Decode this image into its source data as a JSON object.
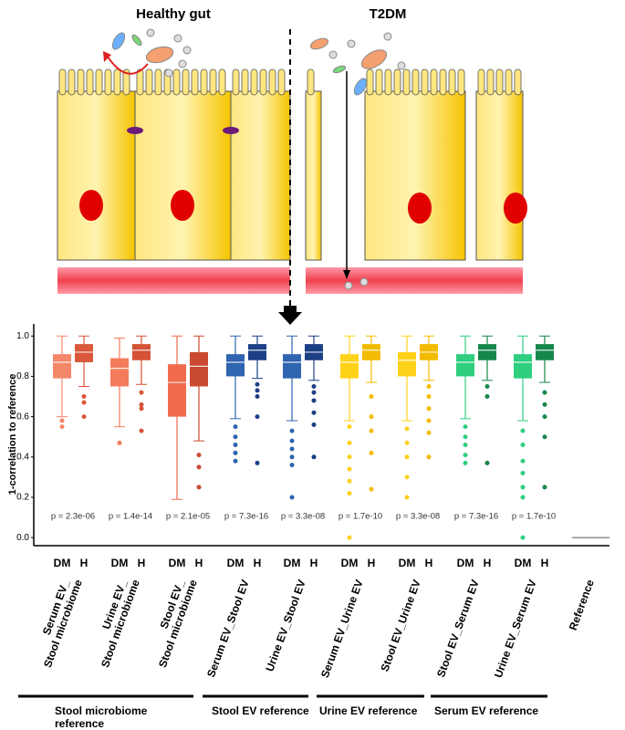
{
  "illustration": {
    "left_title": "Healthy gut",
    "right_title": "T2DM"
  },
  "chart_data": {
    "type": "box",
    "ylabel": "1-correlation to reference",
    "ylim": [
      -0.04,
      1.06
    ],
    "yticks": [
      {
        "value": 0,
        "label": "0.0"
      },
      {
        "value": 0.2,
        "label": "0.2"
      },
      {
        "value": 0.4,
        "label": "0.4"
      },
      {
        "value": 0.6,
        "label": "0.6"
      },
      {
        "value": 0.8,
        "label": "0.8"
      },
      {
        "value": 1,
        "label": "1.0"
      }
    ],
    "groups": [
      {
        "label": [
          "Serum EV_",
          "Stool microbiome"
        ],
        "p": "p = 2.3e-06",
        "boxes": [
          {
            "category": "DM",
            "color": "#f4866a",
            "stats": [
              0.6,
              0.79,
              0.87,
              0.91,
              1.0
            ],
            "outliers": [
              0.58,
              0.55
            ]
          },
          {
            "category": "H",
            "color": "#d9573b",
            "stats": [
              0.75,
              0.87,
              0.92,
              0.96,
              1.0
            ],
            "outliers": [
              0.7,
              0.67,
              0.6
            ]
          }
        ]
      },
      {
        "label": [
          "Urine EV_",
          "Stool microbiome"
        ],
        "p": "p = 1.4e-14",
        "boxes": [
          {
            "category": "DM",
            "color": "#f47c5c",
            "stats": [
              0.55,
              0.75,
              0.84,
              0.89,
              0.99
            ],
            "outliers": [
              0.47
            ]
          },
          {
            "category": "H",
            "color": "#d45236",
            "stats": [
              0.76,
              0.88,
              0.93,
              0.96,
              1.0
            ],
            "outliers": [
              0.72,
              0.66,
              0.64,
              0.53
            ]
          }
        ]
      },
      {
        "label": [
          "Stool EV_",
          "Stool microbiome"
        ],
        "p": "p = 2.1e-05",
        "boxes": [
          {
            "category": "DM",
            "color": "#f06a4c",
            "stats": [
              0.19,
              0.6,
              0.77,
              0.86,
              1.0
            ],
            "outliers": []
          },
          {
            "category": "H",
            "color": "#c94a30",
            "stats": [
              0.48,
              0.75,
              0.85,
              0.92,
              1.0
            ],
            "outliers": [
              0.41,
              0.35,
              0.25
            ]
          }
        ]
      },
      {
        "label": [
          "Serum EV_Stool EV"
        ],
        "p": "p = 7.3e-16",
        "boxes": [
          {
            "category": "DM",
            "color": "#2f64b0",
            "stats": [
              0.59,
              0.8,
              0.87,
              0.91,
              1.0
            ],
            "outliers": [
              0.55,
              0.5,
              0.46,
              0.42,
              0.38
            ]
          },
          {
            "category": "H",
            "color": "#1d3f85",
            "stats": [
              0.79,
              0.88,
              0.93,
              0.96,
              1.0
            ],
            "outliers": [
              0.76,
              0.73,
              0.7,
              0.6,
              0.37
            ]
          }
        ]
      },
      {
        "label": [
          "Urine EV_Stool EV"
        ],
        "p": "p = 3.3e-08",
        "boxes": [
          {
            "category": "DM",
            "color": "#2f64b0",
            "stats": [
              0.58,
              0.79,
              0.87,
              0.91,
              1.0
            ],
            "outliers": [
              0.53,
              0.48,
              0.44,
              0.4,
              0.36,
              0.2
            ]
          },
          {
            "category": "H",
            "color": "#1d3f85",
            "stats": [
              0.78,
              0.88,
              0.92,
              0.96,
              1.0
            ],
            "outliers": [
              0.75,
              0.72,
              0.68,
              0.62,
              0.56,
              0.4
            ]
          }
        ]
      },
      {
        "label": [
          "Serum EV_Urine EV"
        ],
        "p": "p = 1.7e-10",
        "boxes": [
          {
            "category": "DM",
            "color": "#ffd21a",
            "stats": [
              0.58,
              0.79,
              0.87,
              0.91,
              1.0
            ],
            "outliers": [
              0.55,
              0.47,
              0.4,
              0.34,
              0.28,
              0.22,
              0.0
            ]
          },
          {
            "category": "H",
            "color": "#f2bb00",
            "stats": [
              0.77,
              0.88,
              0.93,
              0.96,
              1.0
            ],
            "outliers": [
              0.7,
              0.6,
              0.53,
              0.42,
              0.24
            ]
          }
        ]
      },
      {
        "label": [
          "Stool EV_Urine EV"
        ],
        "p": "p = 3.3e-08",
        "boxes": [
          {
            "category": "DM",
            "color": "#ffd21a",
            "stats": [
              0.58,
              0.8,
              0.88,
              0.92,
              1.0
            ],
            "outliers": [
              0.54,
              0.47,
              0.4,
              0.3,
              0.2
            ]
          },
          {
            "category": "H",
            "color": "#f2bb00",
            "stats": [
              0.78,
              0.88,
              0.92,
              0.96,
              1.0
            ],
            "outliers": [
              0.75,
              0.7,
              0.64,
              0.58,
              0.52,
              0.4
            ]
          }
        ]
      },
      {
        "label": [
          "Stool EV_Serum EV"
        ],
        "p": "p = 7.3e-16",
        "boxes": [
          {
            "category": "DM",
            "color": "#2fcf7f",
            "stats": [
              0.59,
              0.8,
              0.87,
              0.91,
              1.0
            ],
            "outliers": [
              0.55,
              0.5,
              0.46,
              0.41,
              0.37
            ]
          },
          {
            "category": "H",
            "color": "#17864a",
            "stats": [
              0.78,
              0.88,
              0.93,
              0.96,
              1.0
            ],
            "outliers": [
              0.75,
              0.7,
              0.37
            ]
          }
        ]
      },
      {
        "label": [
          "Urine EV_Serum EV"
        ],
        "p": "p = 1.7e-10",
        "boxes": [
          {
            "category": "DM",
            "color": "#2fcf7f",
            "stats": [
              0.58,
              0.79,
              0.87,
              0.91,
              1.0
            ],
            "outliers": [
              0.53,
              0.46,
              0.38,
              0.32,
              0.25,
              0.2,
              0.0
            ]
          },
          {
            "category": "H",
            "color": "#17864a",
            "stats": [
              0.77,
              0.88,
              0.93,
              0.96,
              1.0
            ],
            "outliers": [
              0.72,
              0.66,
              0.6,
              0.5,
              0.25
            ]
          }
        ]
      }
    ],
    "reference": {
      "label": "Reference",
      "value": 0
    },
    "reference_groups": [
      "Stool microbiome reference",
      "Stool EV reference",
      "Urine EV reference",
      "Serum EV reference"
    ]
  }
}
